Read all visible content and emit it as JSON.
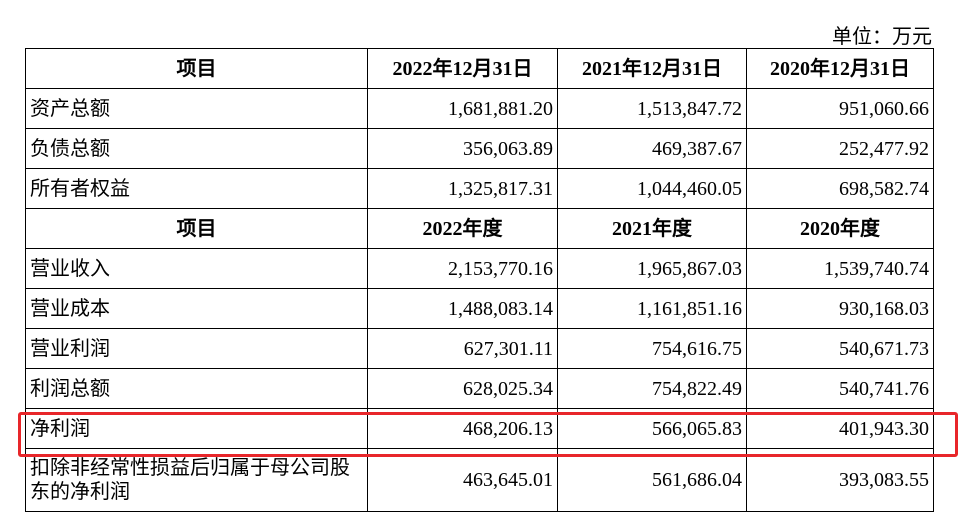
{
  "unit": "单位：万元",
  "table": {
    "header1": [
      "项目",
      "2022年12月31日",
      "2021年12月31日",
      "2020年12月31日"
    ],
    "rows1": [
      [
        "资产总额",
        "1,681,881.20",
        "1,513,847.72",
        "951,060.66"
      ],
      [
        "负债总额",
        "356,063.89",
        "469,387.67",
        "252,477.92"
      ],
      [
        "所有者权益",
        "1,325,817.31",
        "1,044,460.05",
        "698,582.74"
      ]
    ],
    "header2": [
      "项目",
      "2022年度",
      "2021年度",
      "2020年度"
    ],
    "rows2": [
      [
        "营业收入",
        "2,153,770.16",
        "1,965,867.03",
        "1,539,740.74"
      ],
      [
        "营业成本",
        "1,488,083.14",
        "1,161,851.16",
        "930,168.03"
      ],
      [
        "营业利润",
        "627,301.11",
        "754,616.75",
        "540,671.73"
      ],
      [
        "利润总额",
        "628,025.34",
        "754,822.49",
        "540,741.76"
      ],
      [
        "净利润",
        "468,206.13",
        "566,065.83",
        "401,943.30"
      ],
      [
        "扣除非经常性损益后归属于母公司股东的净利润",
        "463,645.01",
        "561,686.04",
        "393,083.55"
      ]
    ]
  }
}
